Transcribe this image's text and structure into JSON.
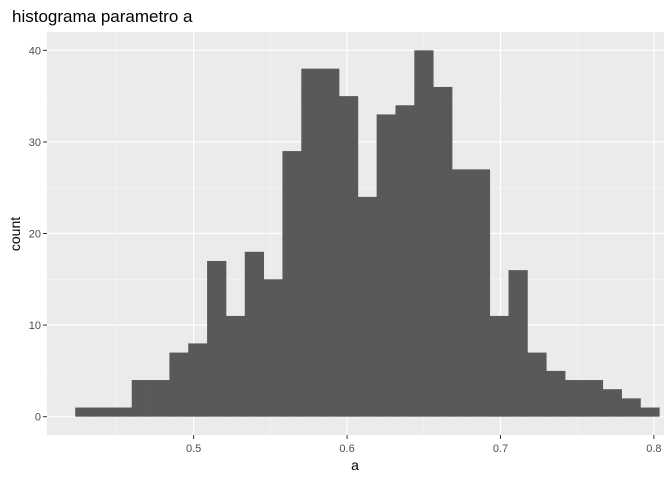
{
  "chart_data": {
    "type": "bar",
    "title": "histograma parametro a",
    "xlabel": "a",
    "ylabel": "count",
    "xlim": [
      0.4044,
      0.8066
    ],
    "ylim": [
      -2,
      42
    ],
    "grid": true,
    "legend": "none",
    "bar_color": "#595959",
    "panel_color": "#EBEBEB",
    "x_ticks": [
      0.5,
      0.6,
      0.7,
      0.8
    ],
    "x_tick_labels": [
      "0.5",
      "0.6",
      "0.7",
      "0.8"
    ],
    "y_ticks": [
      0,
      10,
      20,
      30,
      40
    ],
    "y_tick_labels": [
      "0",
      "10",
      "20",
      "30",
      "40"
    ],
    "bin_width": 0.01228,
    "bin_start": 0.4228,
    "values": [
      1,
      1,
      1,
      4,
      4,
      7,
      8,
      17,
      11,
      18,
      15,
      29,
      38,
      38,
      35,
      24,
      33,
      34,
      40,
      36,
      27,
      27,
      11,
      16,
      7,
      5,
      4,
      4,
      3,
      2,
      1
    ]
  }
}
